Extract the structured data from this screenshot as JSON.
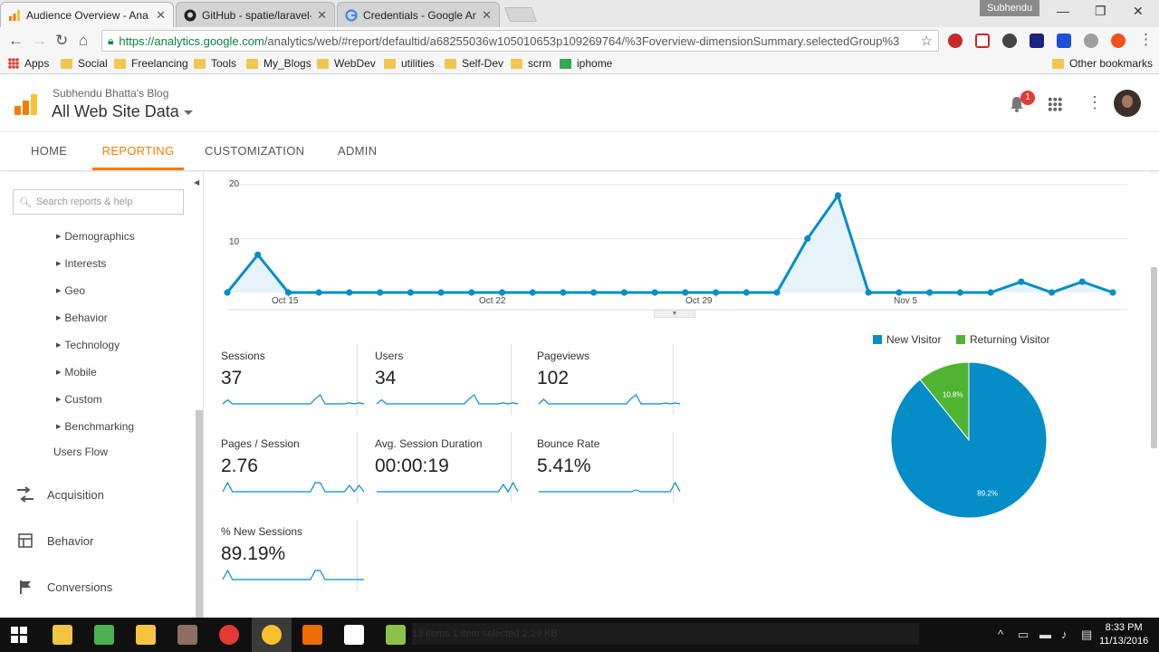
{
  "browser": {
    "tabs": [
      {
        "title": "Audience Overview - Ana",
        "icon": "google-analytics-icon",
        "active": true
      },
      {
        "title": "GitHub - spatie/laravel-a",
        "icon": "github-icon",
        "active": false
      },
      {
        "title": "Credentials - Google Ana",
        "icon": "google-icon",
        "active": false
      }
    ],
    "profile_name": "Subhendu",
    "url_host": "https://analytics.google.com",
    "url_rest": "/analytics/web/#report/defaultid/a68255036w105010653p109269764/%3Foverview-dimensionSummary.selectedGroup%3",
    "bookmarks": [
      "Apps",
      "Social",
      "Freelancing",
      "Tools",
      "My_Blogs",
      "WebDev",
      "utilities",
      "Self-Dev",
      "scrm",
      "iphome"
    ],
    "other_bookmarks": "Other bookmarks"
  },
  "ga": {
    "account": "Subhendu Bhatta's Blog",
    "property": "All Web Site Data",
    "notification_count": "1",
    "nav": [
      "HOME",
      "REPORTING",
      "CUSTOMIZATION",
      "ADMIN"
    ],
    "active_nav": "REPORTING"
  },
  "sidebar": {
    "search_placeholder": "Search reports & help",
    "audience_items": [
      "Demographics",
      "Interests",
      "Geo",
      "Behavior",
      "Technology",
      "Mobile",
      "Custom",
      "Benchmarking"
    ],
    "users_flow": "Users Flow",
    "sections": [
      {
        "label": "Acquisition",
        "icon": "acquisition-icon"
      },
      {
        "label": "Behavior",
        "icon": "behavior-icon"
      },
      {
        "label": "Conversions",
        "icon": "flag-icon"
      }
    ]
  },
  "chart_data": [
    {
      "type": "line",
      "title": "",
      "xlabel": "",
      "ylabel": "",
      "ylim": [
        0,
        20
      ],
      "y_ticks": [
        10,
        20
      ],
      "x_tick_labels": [
        "Oct 15",
        "Oct 22",
        "Oct 29",
        "Nov 5"
      ],
      "x_tick_indices": [
        2,
        9,
        16,
        23
      ],
      "series": [
        {
          "values": [
            0,
            7,
            0,
            0,
            0,
            0,
            0,
            0,
            0,
            0,
            0,
            0,
            0,
            0,
            0,
            0,
            0,
            0,
            0,
            10,
            18,
            0,
            0,
            0,
            0,
            0,
            2,
            0,
            2,
            0
          ],
          "color": "#058dc7"
        }
      ],
      "grid": true
    },
    {
      "type": "pie",
      "labels": [
        "New Visitor",
        "Returning Visitor"
      ],
      "values": [
        89.2,
        10.8
      ],
      "value_labels": [
        "89.2%",
        "10.8%"
      ],
      "colors": [
        "#058dc7",
        "#50b432"
      ],
      "legend": "top"
    }
  ],
  "metrics": [
    {
      "label": "Sessions",
      "value": "37",
      "spark": [
        0,
        4,
        0,
        0,
        0,
        0,
        0,
        0,
        0,
        0,
        0,
        0,
        0,
        0,
        0,
        0,
        0,
        0,
        0,
        5,
        9,
        0,
        0,
        0,
        0,
        0,
        1,
        0,
        1,
        0
      ]
    },
    {
      "label": "Users",
      "value": "34",
      "spark": [
        0,
        4,
        0,
        0,
        0,
        0,
        0,
        0,
        0,
        0,
        0,
        0,
        0,
        0,
        0,
        0,
        0,
        0,
        0,
        5,
        9,
        0,
        0,
        0,
        0,
        0,
        1,
        0,
        1,
        0
      ]
    },
    {
      "label": "Pageviews",
      "value": "102",
      "spark": [
        0,
        5,
        0,
        0,
        0,
        0,
        0,
        0,
        0,
        0,
        0,
        0,
        0,
        0,
        0,
        0,
        0,
        0,
        0,
        6,
        10,
        0,
        0,
        0,
        0,
        0,
        1,
        0,
        1,
        0
      ]
    },
    {
      "label": "Pages / Session",
      "value": "2.76",
      "spark": [
        0,
        10,
        0,
        0,
        0,
        0,
        0,
        0,
        0,
        0,
        0,
        0,
        0,
        0,
        0,
        0,
        0,
        0,
        0,
        10,
        10,
        0,
        0,
        0,
        0,
        0,
        7,
        0,
        7,
        0
      ]
    },
    {
      "label": "Avg. Session Duration",
      "value": "00:00:19",
      "spark": [
        0,
        0,
        0,
        0,
        0,
        0,
        0,
        0,
        0,
        0,
        0,
        0,
        0,
        0,
        0,
        0,
        0,
        0,
        0,
        0,
        0,
        0,
        0,
        0,
        0,
        0,
        8,
        0,
        10,
        0
      ]
    },
    {
      "label": "Bounce Rate",
      "value": "5.41%",
      "spark": [
        0,
        0,
        0,
        0,
        0,
        0,
        0,
        0,
        0,
        0,
        0,
        0,
        0,
        0,
        0,
        0,
        0,
        0,
        0,
        0,
        2,
        0,
        0,
        0,
        0,
        0,
        0,
        0,
        10,
        0
      ]
    },
    {
      "label": "% New Sessions",
      "value": "89.19%",
      "spark": [
        0,
        10,
        0,
        0,
        0,
        0,
        0,
        0,
        0,
        0,
        0,
        0,
        0,
        0,
        0,
        0,
        0,
        0,
        0,
        10,
        10,
        0,
        0,
        0,
        0,
        0,
        0,
        0,
        0,
        0
      ]
    }
  ],
  "taskbar": {
    "explorer_text": "13 items     1 item selected  2.29 KB",
    "time": "8:33 PM",
    "date": "11/13/2016"
  },
  "colors": {
    "accent": "#f57c00",
    "series": "#058dc7",
    "fill": "#e6f3fa"
  }
}
